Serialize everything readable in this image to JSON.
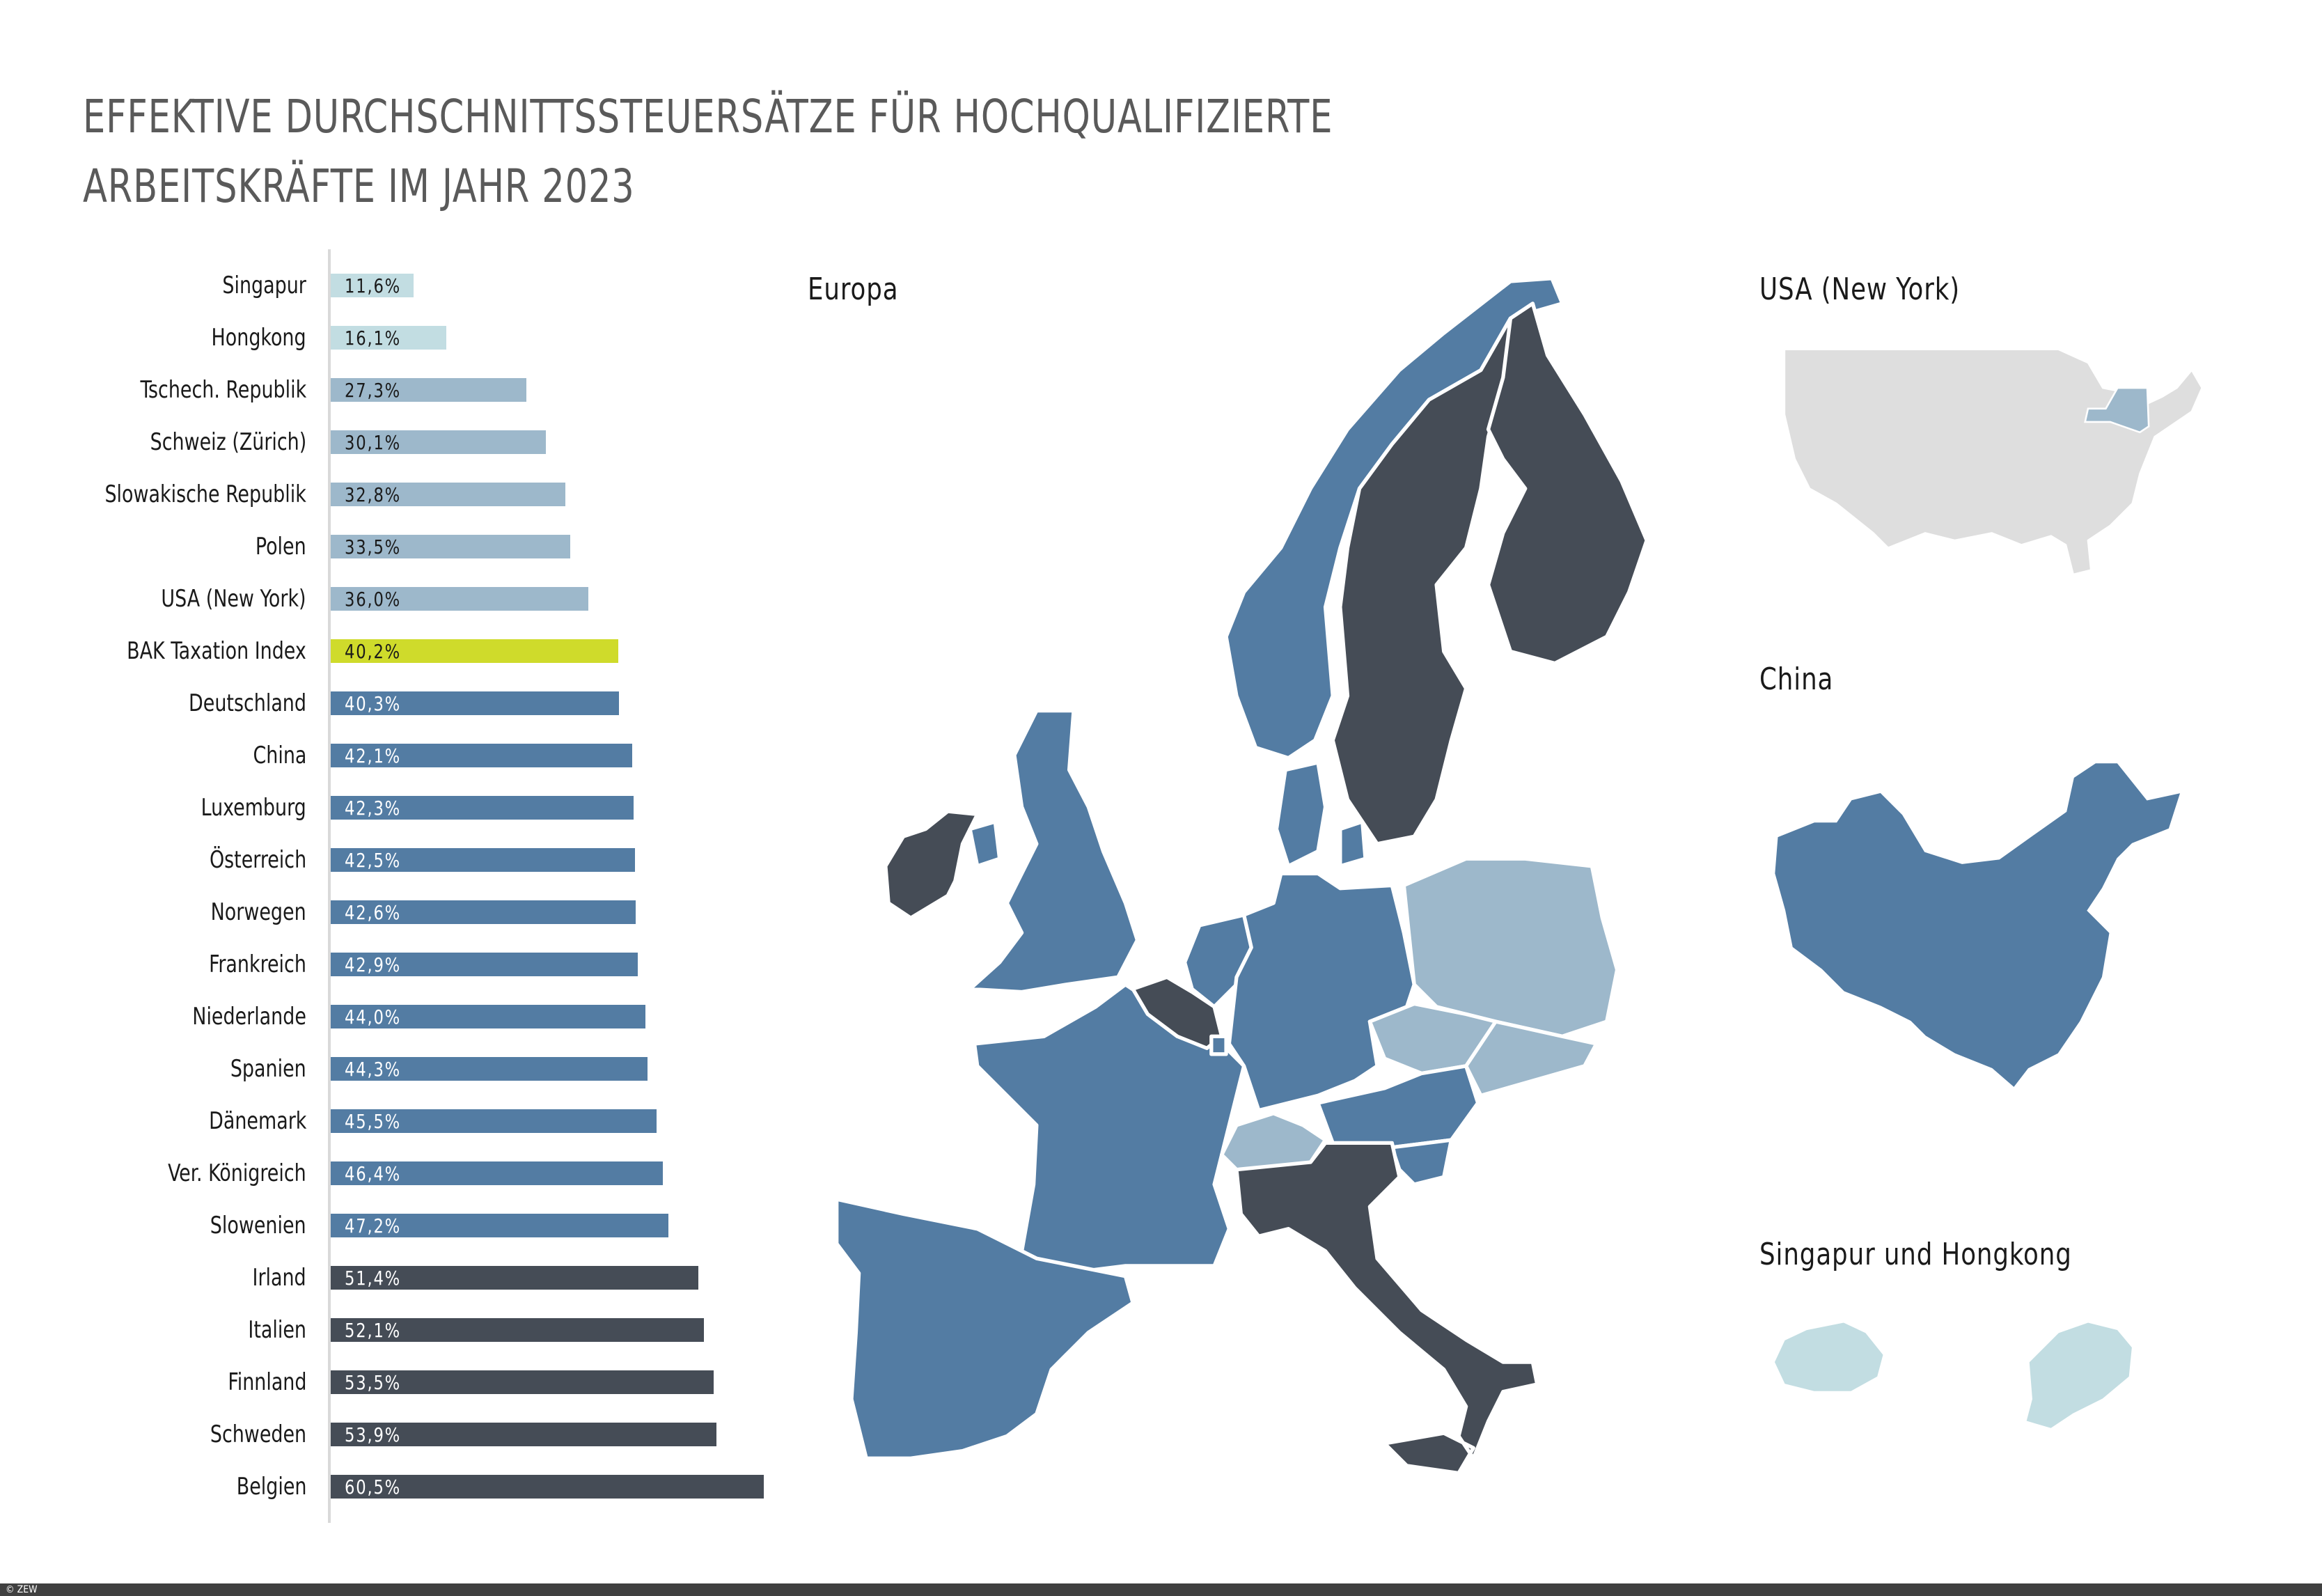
{
  "title": {
    "line1": "EFFEKTIVE DURCHSCHNITTSSTEUERSÄTZE FÜR HOCHQUALIFIZIERTE",
    "line2": "ARBEITSKRÄFTE IM JAHR 2023"
  },
  "colors": {
    "pale": "#c2dde2",
    "light": "#9db8cb",
    "index": "#cfdb2b",
    "mid": "#537ca3",
    "dark": "#454c56",
    "usa_base": "#dedede",
    "axis": "#d9d9d9"
  },
  "chart_data": {
    "type": "bar",
    "orientation": "horizontal",
    "title": "EFFEKTIVE DURCHSCHNITTSSTEUERSÄTZE FÜR HOCHQUALIFIZIERTE ARBEITSKRÄFTE IM JAHR 2023",
    "xlabel": "",
    "ylabel": "",
    "grid": false,
    "legend": null,
    "unit": "%",
    "categories": [
      "Singapur",
      "Hongkong",
      "Tschech. Republik",
      "Schweiz (Zürich)",
      "Slowakische Republik",
      "Polen",
      "USA (New York)",
      "BAK Taxation Index",
      "Deutschland",
      "China",
      "Luxemburg",
      "Österreich",
      "Norwegen",
      "Frankreich",
      "Niederlande",
      "Spanien",
      "Dänemark",
      "Ver. Königreich",
      "Slowenien",
      "Irland",
      "Italien",
      "Finnland",
      "Schweden",
      "Belgien"
    ],
    "values": [
      11.6,
      16.1,
      27.3,
      30.1,
      32.8,
      33.5,
      36.0,
      40.2,
      40.3,
      42.1,
      42.3,
      42.5,
      42.6,
      42.9,
      44.0,
      44.3,
      45.5,
      46.4,
      47.2,
      51.4,
      52.1,
      53.5,
      53.9,
      60.5
    ],
    "value_labels": [
      "11,6%",
      "16,1%",
      "27,3%",
      "30,1%",
      "32,8%",
      "33,5%",
      "36,0%",
      "40,2%",
      "40,3%",
      "42,1%",
      "42,3%",
      "42,5%",
      "42,6%",
      "42,9%",
      "44,0%",
      "44,3%",
      "45,5%",
      "46,4%",
      "47,2%",
      "51,4%",
      "52,1%",
      "53,5%",
      "53,9%",
      "60,5%"
    ],
    "color_groups": [
      "pale",
      "pale",
      "light",
      "light",
      "light",
      "light",
      "light",
      "index",
      "mid",
      "mid",
      "mid",
      "mid",
      "mid",
      "mid",
      "mid",
      "mid",
      "mid",
      "mid",
      "mid",
      "dark",
      "dark",
      "dark",
      "dark",
      "dark"
    ]
  },
  "maps": {
    "europe_label": "Europa",
    "usa_label": "USA (New York)",
    "china_label": "China",
    "sg_hk_label": "Singapur und Hongkong"
  },
  "footer": {
    "copyright": "© ZEW"
  }
}
